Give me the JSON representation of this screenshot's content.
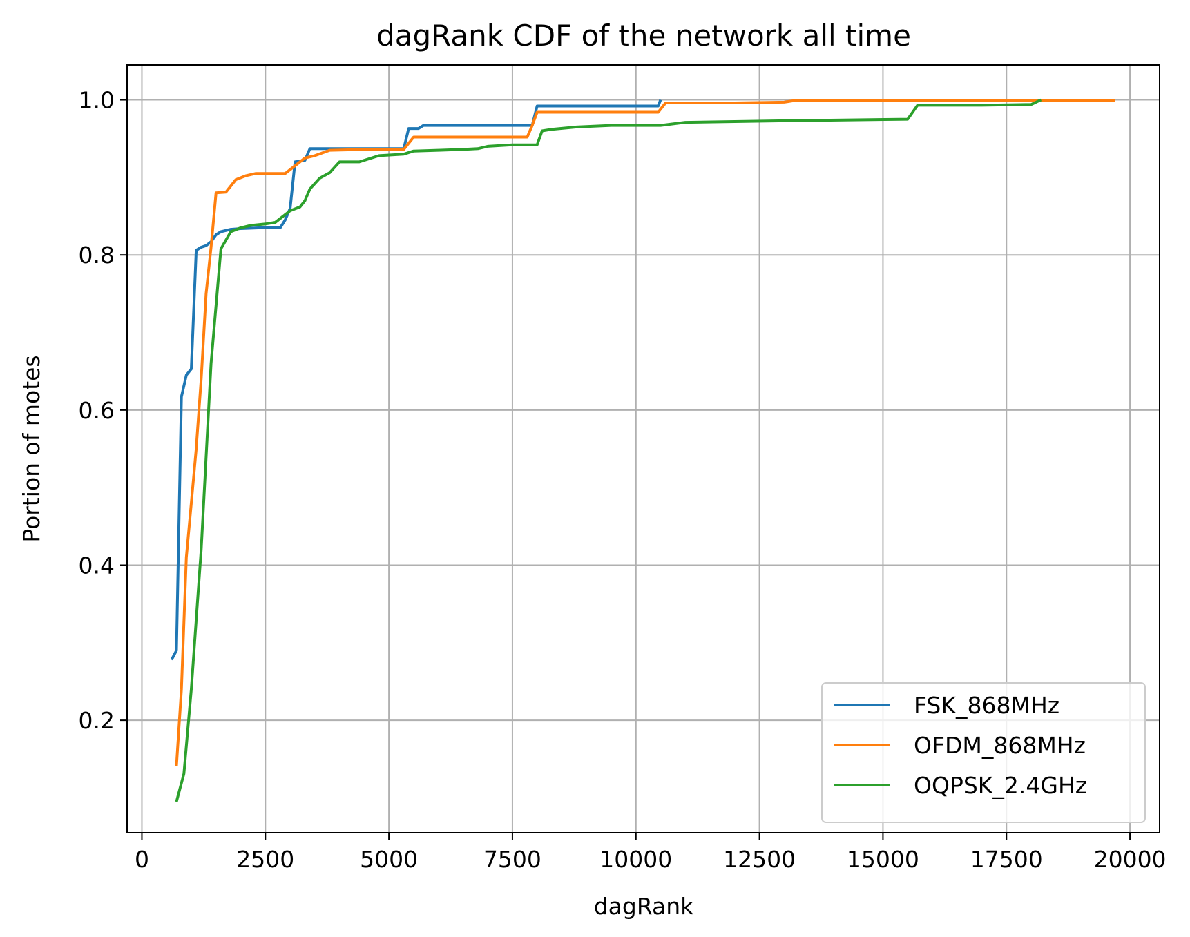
{
  "chart_data": {
    "type": "line",
    "title": "dagRank CDF of the network all time",
    "xlabel": "dagRank",
    "ylabel": "Portion of motes",
    "xlim": [
      -300,
      20600
    ],
    "ylim": [
      0.055,
      1.045
    ],
    "x_ticks": [
      0,
      2500,
      5000,
      7500,
      10000,
      12500,
      15000,
      17500,
      20000
    ],
    "x_tick_labels": [
      "0",
      "2500",
      "5000",
      "7500",
      "10000",
      "12500",
      "15000",
      "17500",
      "20000"
    ],
    "y_ticks": [
      0.2,
      0.4,
      0.6,
      0.8,
      1.0
    ],
    "y_tick_labels": [
      "0.2",
      "0.4",
      "0.6",
      "0.8",
      "1.0"
    ],
    "grid": true,
    "legend_position": "lower-right",
    "series": [
      {
        "name": "FSK_868MHz",
        "color": "#1f77b4",
        "x": [
          600,
          700,
          800,
          900,
          1000,
          1100,
          1200,
          1300,
          1400,
          1500,
          1600,
          1800,
          2000,
          2400,
          2800,
          2900,
          3000,
          3100,
          3200,
          3300,
          3400,
          3800,
          4000,
          4500,
          5000,
          5300,
          5400,
          5600,
          5700,
          6000,
          7000,
          7900,
          8000,
          9000,
          10000,
          10450,
          10500
        ],
        "y": [
          0.278,
          0.29,
          0.617,
          0.645,
          0.653,
          0.806,
          0.81,
          0.812,
          0.817,
          0.826,
          0.83,
          0.833,
          0.834,
          0.835,
          0.835,
          0.845,
          0.86,
          0.92,
          0.921,
          0.922,
          0.937,
          0.937,
          0.937,
          0.937,
          0.937,
          0.937,
          0.963,
          0.963,
          0.967,
          0.967,
          0.967,
          0.967,
          0.992,
          0.992,
          0.992,
          0.992,
          1.0
        ]
      },
      {
        "name": "OFDM_868MHz",
        "color": "#ff7f0e",
        "x": [
          700,
          800,
          900,
          1000,
          1100,
          1200,
          1300,
          1400,
          1500,
          1700,
          1900,
          2100,
          2300,
          2600,
          2900,
          3100,
          3300,
          3500,
          3800,
          4500,
          5000,
          5300,
          5500,
          6000,
          7000,
          7800,
          7900,
          8000,
          9000,
          10000,
          10450,
          10600,
          11000,
          12000,
          13000,
          13200,
          15000,
          17000,
          19000,
          19700
        ],
        "y": [
          0.141,
          0.24,
          0.41,
          0.48,
          0.55,
          0.64,
          0.75,
          0.81,
          0.88,
          0.881,
          0.897,
          0.902,
          0.905,
          0.905,
          0.905,
          0.915,
          0.925,
          0.928,
          0.935,
          0.936,
          0.936,
          0.936,
          0.952,
          0.952,
          0.952,
          0.952,
          0.967,
          0.984,
          0.984,
          0.984,
          0.984,
          0.996,
          0.996,
          0.996,
          0.997,
          0.999,
          0.999,
          0.999,
          0.999,
          0.999
        ]
      },
      {
        "name": "OQPSK_2.4GHz",
        "color": "#2ca02c",
        "x": [
          700,
          850,
          1000,
          1200,
          1400,
          1600,
          1800,
          2000,
          2200,
          2500,
          2700,
          3000,
          3200,
          3300,
          3400,
          3600,
          3800,
          3900,
          4000,
          4200,
          4400,
          4600,
          4800,
          5300,
          5500,
          6000,
          6500,
          6800,
          7000,
          7500,
          8000,
          8100,
          8300,
          8800,
          9500,
          10500,
          11000,
          13000,
          15500,
          15700,
          17000,
          18000,
          18200
        ],
        "y": [
          0.095,
          0.131,
          0.24,
          0.42,
          0.66,
          0.808,
          0.83,
          0.835,
          0.838,
          0.84,
          0.842,
          0.857,
          0.862,
          0.87,
          0.885,
          0.899,
          0.906,
          0.913,
          0.92,
          0.92,
          0.92,
          0.924,
          0.928,
          0.93,
          0.934,
          0.935,
          0.936,
          0.937,
          0.94,
          0.942,
          0.942,
          0.96,
          0.962,
          0.965,
          0.967,
          0.967,
          0.971,
          0.973,
          0.975,
          0.993,
          0.993,
          0.994,
          1.0
        ]
      }
    ]
  }
}
